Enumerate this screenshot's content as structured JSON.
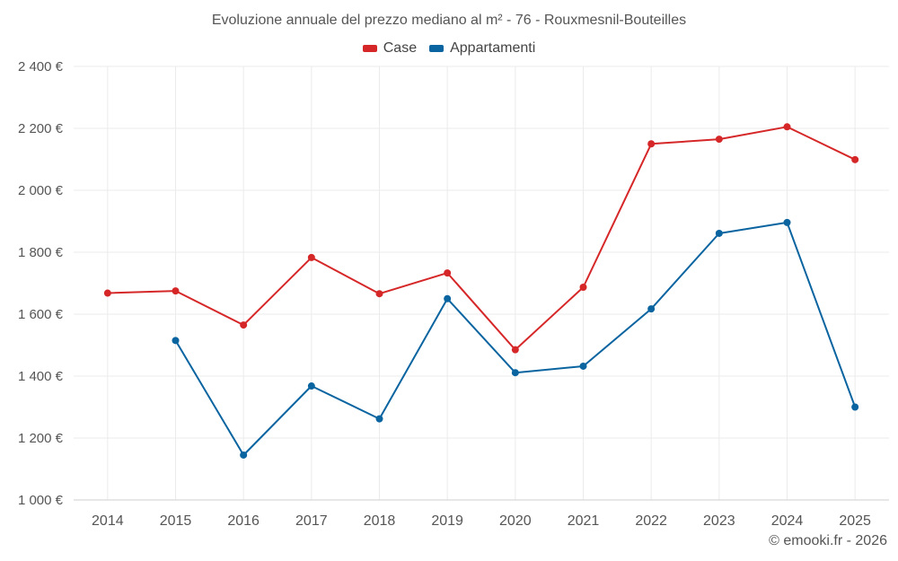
{
  "chart_data": {
    "type": "line",
    "title": "Evoluzione annuale del prezzo mediano al m² - 76 - Rouxmesnil-Bouteilles",
    "categories": [
      "2014",
      "2015",
      "2016",
      "2017",
      "2018",
      "2019",
      "2020",
      "2021",
      "2022",
      "2023",
      "2024",
      "2025"
    ],
    "series": [
      {
        "name": "Case",
        "color": "#d62728",
        "values": [
          1668,
          1675,
          1565,
          1783,
          1666,
          1733,
          1485,
          1687,
          2150,
          2165,
          2205,
          2099
        ]
      },
      {
        "name": "Appartamenti",
        "color": "#0a64a0",
        "values": [
          null,
          1515,
          1145,
          1368,
          1262,
          1650,
          1411,
          1432,
          1617,
          1861,
          1896,
          1300
        ]
      }
    ],
    "ylim": [
      1000,
      2400
    ],
    "yticks": [
      1000,
      1200,
      1400,
      1600,
      1800,
      2000,
      2200,
      2400
    ],
    "ytick_labels": [
      "1 000 €",
      "1 200 €",
      "1 400 €",
      "1 600 €",
      "1 800 €",
      "2 000 €",
      "2 200 €",
      "2 400 €"
    ],
    "xlabel": "",
    "ylabel": "",
    "grid": true,
    "legend_position": "top-center"
  },
  "footer": {
    "credit": "© emooki.fr - 2026"
  }
}
